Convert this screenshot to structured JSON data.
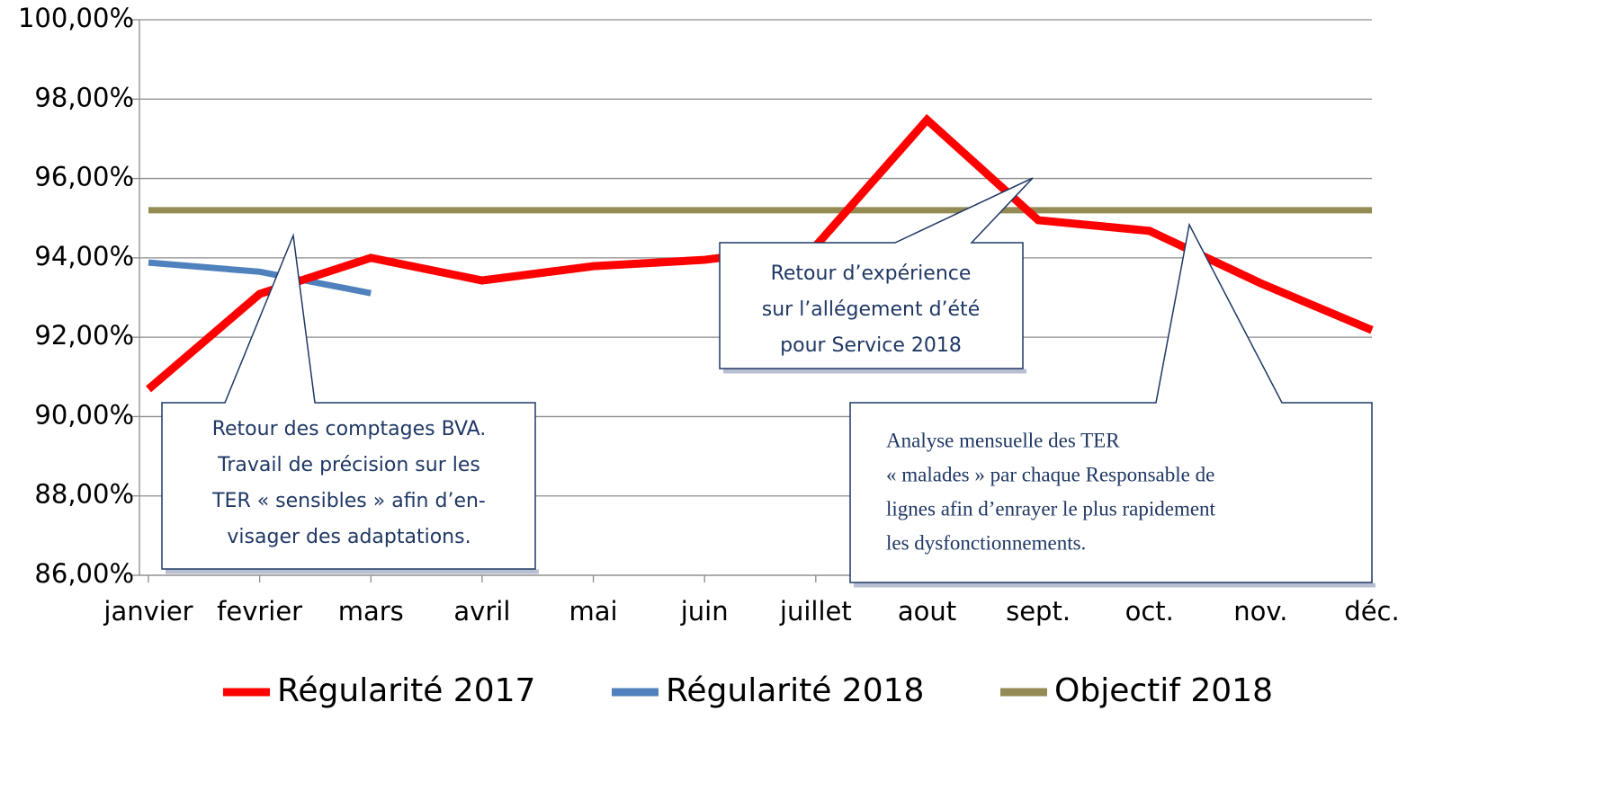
{
  "chart_data": {
    "type": "line",
    "categories": [
      "janvier",
      "fevrier",
      "mars",
      "avril",
      "mai",
      "juin",
      "juillet",
      "aout",
      "sept.",
      "oct.",
      "nov.",
      "déc."
    ],
    "series": [
      {
        "name": "Régularité 2017",
        "color": "#ff0000",
        "values": [
          90.69,
          93.09,
          94.0,
          93.43,
          93.79,
          93.95,
          94.3,
          97.48,
          94.95,
          94.68,
          93.36,
          92.18
        ]
      },
      {
        "name": "Régularité 2018",
        "color": "#4f81bd",
        "values": [
          93.88,
          93.65,
          93.11,
          null,
          null,
          null,
          null,
          null,
          null,
          null,
          null,
          null
        ]
      },
      {
        "name": "Objectif 2018",
        "color": "#948a54",
        "values": [
          95.2,
          95.2,
          95.2,
          95.2,
          95.2,
          95.2,
          95.2,
          95.2,
          95.2,
          95.2,
          95.2,
          95.2
        ]
      }
    ],
    "ylim": [
      86,
      100
    ],
    "yticks": [
      {
        "value": 86,
        "label": "86,00%"
      },
      {
        "value": 88,
        "label": "88,00%"
      },
      {
        "value": 90,
        "label": "90,00%"
      },
      {
        "value": 92,
        "label": "92,00%"
      },
      {
        "value": 94,
        "label": "94,00%"
      },
      {
        "value": 96,
        "label": "96,00%"
      },
      {
        "value": 98,
        "label": "98,00%"
      },
      {
        "value": 100,
        "label": "100,00%"
      }
    ],
    "grid": true,
    "legend": "bottom",
    "annotations": [
      {
        "lines": [
          "Retour des comptages BVA.",
          "Travail de précision sur les",
          "TER « sensibles » afin d’en-",
          "visager des adaptations."
        ]
      },
      {
        "lines": [
          "Retour d’expérience",
          "sur l’allégement d’été",
          "pour Service 2018"
        ]
      },
      {
        "lines": [
          "Analyse  mensuelle des TER",
          "« malades » par chaque Responsable de",
          "lignes afin d’enrayer le plus rapidement",
          "les  dysfonctionnements."
        ]
      }
    ]
  }
}
